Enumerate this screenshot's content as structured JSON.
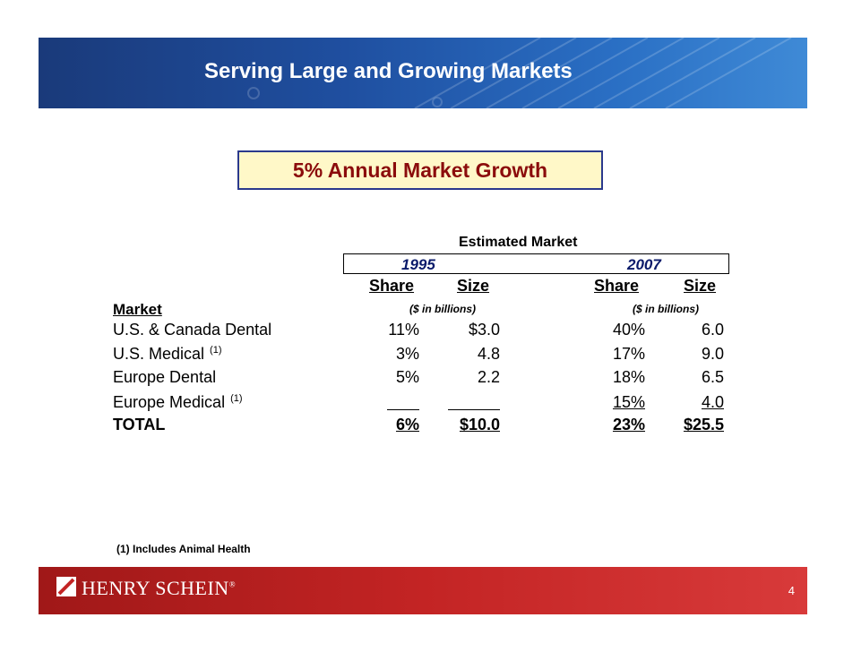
{
  "header": {
    "title": "Serving Large and Growing Markets"
  },
  "highlight": {
    "text": "5% Annual Market Growth"
  },
  "table": {
    "group_header": "Estimated Market",
    "years": [
      "1995",
      "2007"
    ],
    "col_share": "Share",
    "col_size": "Size",
    "units": "($ in billions)",
    "market_label": "Market",
    "rows": [
      {
        "name": "U.S. & Canada Dental",
        "sup": "",
        "share1995": "11%",
        "size1995": "$3.0",
        "share2007": "40%",
        "size2007": "6.0"
      },
      {
        "name": "U.S. Medical",
        "sup": "(1)",
        "share1995": "3%",
        "size1995": "4.8",
        "share2007": "17%",
        "size2007": "9.0"
      },
      {
        "name": "Europe Dental",
        "sup": "",
        "share1995": "5%",
        "size1995": "2.2",
        "share2007": "18%",
        "size2007": "6.5"
      },
      {
        "name": "Europe Medical",
        "sup": "(1)",
        "share1995": "",
        "size1995": "",
        "share2007": "15%",
        "size2007": "4.0"
      }
    ],
    "total": {
      "name": "TOTAL",
      "share1995": "6%",
      "size1995": "$10.0",
      "share2007": "23%",
      "size2007": "$25.5"
    }
  },
  "footnote": "(1) Includes Animal Health",
  "footer": {
    "brand": "HENRY SCHEIN",
    "registered": "®",
    "page": "4"
  },
  "colors": {
    "header_blue": "#1f4fa0",
    "footer_red": "#c32424",
    "highlight_text": "#8b0c0c",
    "highlight_bg": "#fff8c8"
  }
}
